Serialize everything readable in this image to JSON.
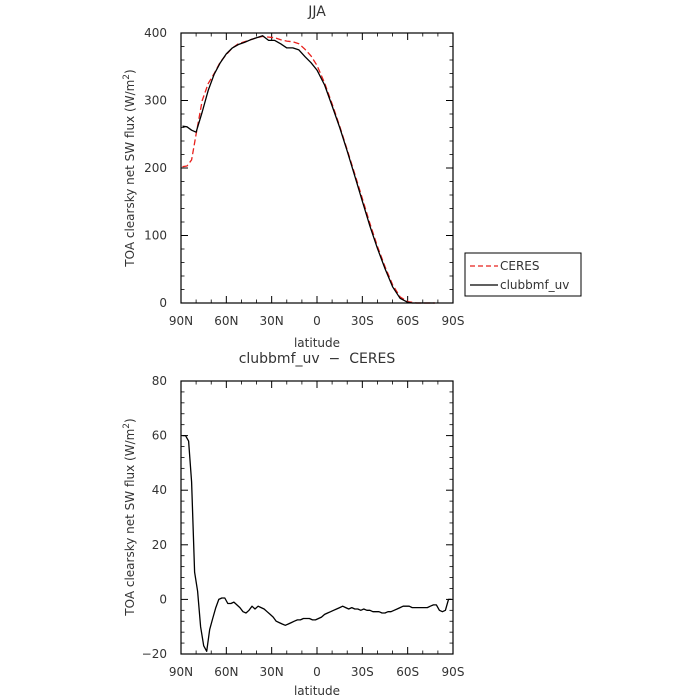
{
  "chart_data": [
    {
      "type": "line",
      "title": "JJA",
      "xlabel": "latitude",
      "ylabel": "TOA clearsky net SW flux (W/m",
      "ylabel_sup": "2",
      "ylabel_end": ")",
      "xlim": [
        90,
        -90
      ],
      "ylim": [
        0,
        400
      ],
      "x_ticks": [
        90,
        60,
        30,
        0,
        -30,
        -60,
        -90
      ],
      "x_tick_labels": [
        "90N",
        "60N",
        "30N",
        "0",
        "30S",
        "60S",
        "90S"
      ],
      "y_ticks": [
        0,
        100,
        200,
        300,
        400
      ],
      "y_tick_labels": [
        "0",
        "100",
        "200",
        "300",
        "400"
      ],
      "legend": {
        "placement": "right",
        "entries": [
          "CERES",
          "clubbmf_uv"
        ]
      },
      "series": [
        {
          "name": "CERES",
          "color": "#e8201c",
          "dash": "dashed",
          "x": [
            89,
            86,
            83,
            80,
            76,
            72,
            68,
            64,
            60,
            56,
            52,
            48,
            44,
            40,
            36,
            32,
            28,
            24,
            20,
            16,
            12,
            8,
            4,
            0,
            -5,
            -10,
            -15,
            -20,
            -25,
            -30,
            -35,
            -40,
            -45,
            -50,
            -55,
            -60,
            -63,
            -66,
            -69,
            -72,
            -75,
            -78
          ],
          "y": [
            202,
            203,
            212,
            250,
            300,
            325,
            340,
            357,
            368,
            378,
            384,
            387,
            390,
            393,
            395,
            394,
            393,
            390,
            388,
            387,
            384,
            376,
            366,
            352,
            326,
            295,
            262,
            227,
            191,
            155,
            118,
            84,
            54,
            27,
            9,
            2,
            1,
            0,
            0,
            0,
            0,
            0
          ]
        },
        {
          "name": "clubbmf_uv",
          "color": "#000000",
          "dash": "solid",
          "x": [
            89,
            86,
            83,
            80,
            76,
            72,
            68,
            64,
            60,
            56,
            52,
            48,
            44,
            40,
            36,
            32,
            28,
            24,
            20,
            16,
            12,
            8,
            4,
            0,
            -5,
            -10,
            -15,
            -20,
            -25,
            -30,
            -35,
            -40,
            -45,
            -50,
            -55,
            -60,
            -63,
            -66,
            -69,
            -72,
            -75,
            -78
          ],
          "y": [
            262,
            261,
            256,
            253,
            283,
            315,
            339,
            356,
            369,
            378,
            383,
            386,
            390,
            393,
            396,
            389,
            389,
            384,
            378,
            378,
            375,
            365,
            356,
            345,
            323,
            292,
            260,
            225,
            188,
            151,
            114,
            81,
            51,
            24,
            7,
            1,
            0,
            0,
            0,
            0,
            0,
            0
          ]
        }
      ]
    },
    {
      "type": "line",
      "title": "clubbmf_uv  −  CERES",
      "xlabel": "latitude",
      "ylabel": "TOA clearsky net SW flux (W/m",
      "ylabel_sup": "2",
      "ylabel_end": ")",
      "xlim": [
        90,
        -90
      ],
      "ylim": [
        -20,
        80
      ],
      "x_ticks": [
        90,
        60,
        30,
        0,
        -30,
        -60,
        -90
      ],
      "x_tick_labels": [
        "90N",
        "60N",
        "30N",
        "0",
        "30S",
        "60S",
        "90S"
      ],
      "y_ticks": [
        -20,
        0,
        20,
        40,
        60,
        80
      ],
      "y_tick_labels": [
        "−20",
        "0",
        "20",
        "40",
        "60",
        "80"
      ],
      "series": [
        {
          "name": "",
          "color": "#000000",
          "dash": "solid",
          "x": [
            89,
            87,
            85,
            83,
            81,
            79,
            77,
            75,
            73,
            71,
            69,
            67,
            65,
            63,
            61,
            59,
            57,
            55,
            53,
            51,
            49,
            47,
            45,
            43,
            41,
            39,
            37,
            35,
            33,
            31,
            29,
            27,
            25,
            23,
            21,
            19,
            17,
            15,
            13,
            11,
            9,
            7,
            5,
            3,
            1,
            -1,
            -3,
            -5,
            -7,
            -9,
            -11,
            -13,
            -15,
            -17,
            -19,
            -21,
            -23,
            -25,
            -27,
            -29,
            -31,
            -33,
            -35,
            -37,
            -39,
            -41,
            -43,
            -45,
            -47,
            -49,
            -51,
            -53,
            -55,
            -57,
            -59,
            -61,
            -63,
            -65,
            -67,
            -69,
            -71,
            -73,
            -75,
            -77,
            -79,
            -81,
            -83,
            -85,
            -87,
            -89
          ],
          "y": [
            60,
            60,
            58,
            43,
            10,
            3,
            -10,
            -17,
            -19,
            -11,
            -7,
            -3,
            0,
            0.5,
            0.5,
            -1.5,
            -1.5,
            -1,
            -2,
            -3,
            -4.5,
            -5,
            -4,
            -2.5,
            -3.5,
            -2.5,
            -3,
            -3.5,
            -4.5,
            -5.5,
            -6.5,
            -8,
            -8.5,
            -9,
            -9.5,
            -9,
            -8.5,
            -8,
            -7.5,
            -7.5,
            -7,
            -7,
            -7,
            -7.5,
            -7.5,
            -7,
            -6.5,
            -5.5,
            -5,
            -4.5,
            -4,
            -3.5,
            -3,
            -2.5,
            -3,
            -3.5,
            -3,
            -3.5,
            -3.5,
            -4,
            -3.5,
            -4,
            -4,
            -4.5,
            -4.5,
            -4.5,
            -5,
            -5,
            -4.5,
            -4.5,
            -4,
            -3.5,
            -3,
            -2.5,
            -2.5,
            -2.5,
            -3,
            -3,
            -3,
            -3,
            -3,
            -3,
            -2.5,
            -2,
            -2,
            -4,
            -4.5,
            -4,
            0,
            0
          ]
        }
      ]
    }
  ]
}
